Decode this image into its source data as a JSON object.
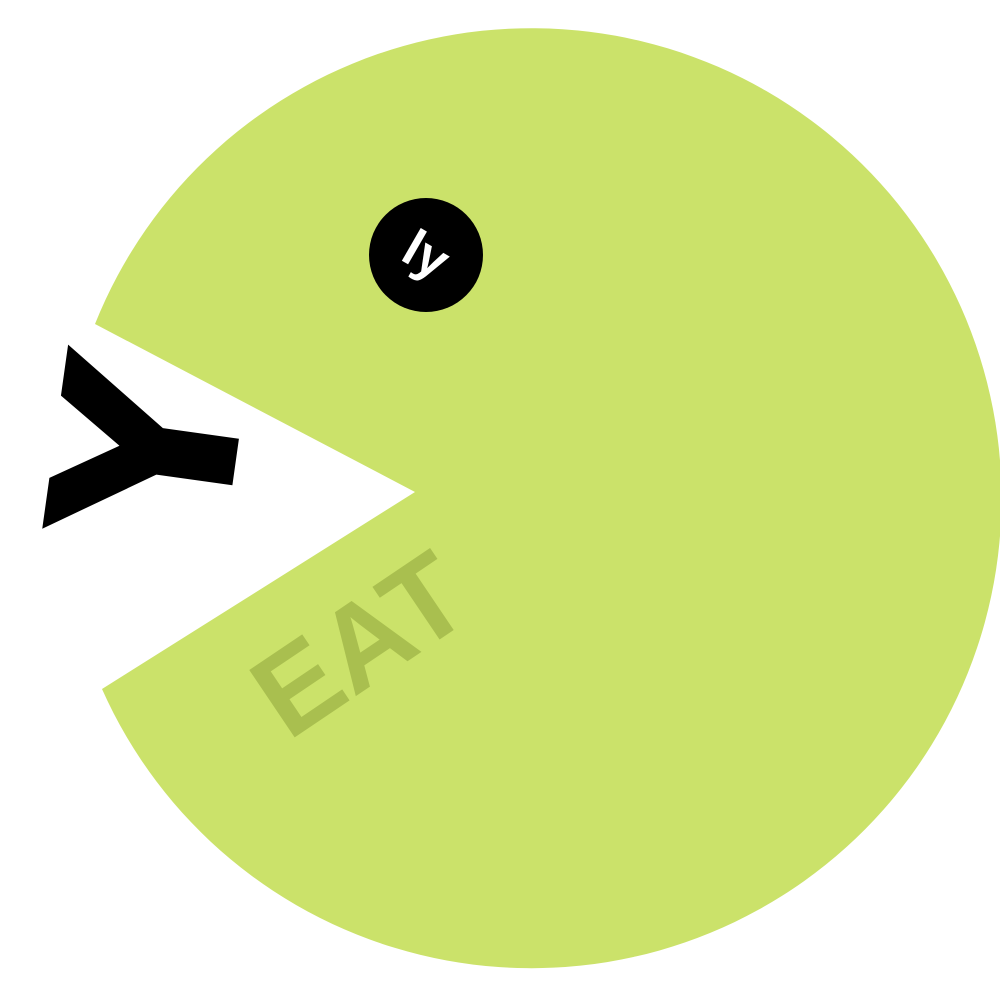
{
  "logo": {
    "eye_text": "ly",
    "body_text": "EAT",
    "food_text": "Y",
    "colors": {
      "body": "#cbe26a",
      "eye": "#000000",
      "eye_text": "#ffffff",
      "body_text": "#a9bf4f",
      "food": "#000000",
      "background": "#ffffff"
    }
  }
}
